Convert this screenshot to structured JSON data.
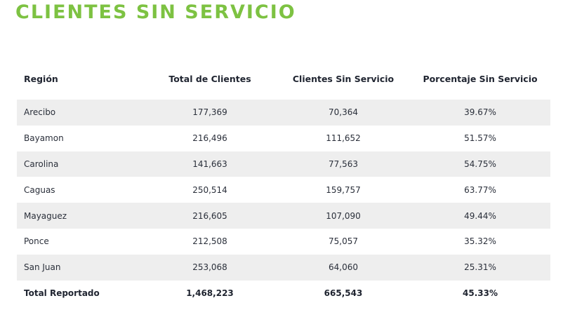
{
  "title": "CLIENTES SIN SERVICIO",
  "colors": {
    "title": "#7dc242",
    "stripe": "#eeeeee"
  },
  "table": {
    "headers": {
      "region": "Región",
      "total": "Total de Clientes",
      "sin_servicio": "Clientes Sin Servicio",
      "porcentaje": "Porcentaje Sin Servicio"
    },
    "rows": [
      {
        "region": "Arecibo",
        "total": "177,369",
        "sin_servicio": "70,364",
        "porcentaje": "39.67%"
      },
      {
        "region": "Bayamon",
        "total": "216,496",
        "sin_servicio": "111,652",
        "porcentaje": "51.57%"
      },
      {
        "region": "Carolina",
        "total": "141,663",
        "sin_servicio": "77,563",
        "porcentaje": "54.75%"
      },
      {
        "region": "Caguas",
        "total": "250,514",
        "sin_servicio": "159,757",
        "porcentaje": "63.77%"
      },
      {
        "region": "Mayaguez",
        "total": "216,605",
        "sin_servicio": "107,090",
        "porcentaje": "49.44%"
      },
      {
        "region": "Ponce",
        "total": "212,508",
        "sin_servicio": "75,057",
        "porcentaje": "35.32%"
      },
      {
        "region": "San Juan",
        "total": "253,068",
        "sin_servicio": "64,060",
        "porcentaje": "25.31%"
      }
    ],
    "total": {
      "region": "Total Reportado",
      "total": "1,468,223",
      "sin_servicio": "665,543",
      "porcentaje": "45.33%"
    }
  }
}
